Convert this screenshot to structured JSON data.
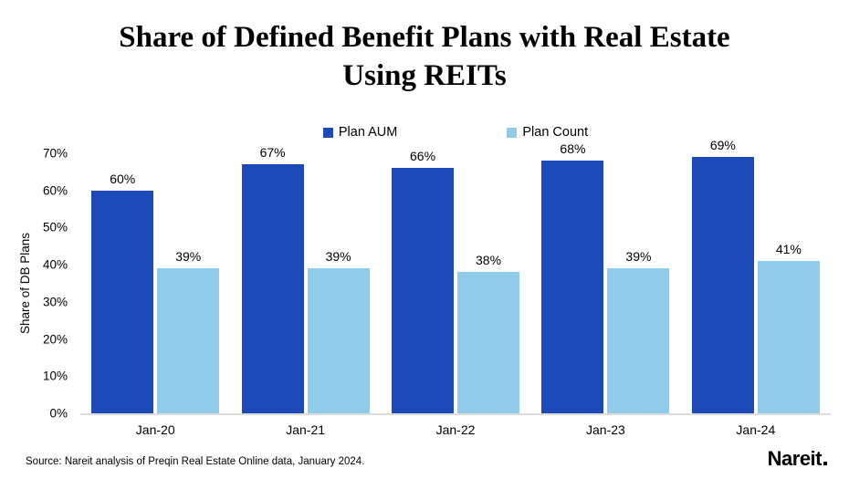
{
  "title_lines": [
    "Share of Defined Benefit Plans with Real Estate",
    "Using REITs"
  ],
  "source_note": "Source: Nareit analysis of Preqin Real Estate Online data, January 2024.",
  "logo_text": "Nareit",
  "colors": {
    "plan_aum": "#1E49B8",
    "plan_count": "#90CBEA",
    "baseline": "#dcdcdc",
    "text": "#000000"
  },
  "chart_data": {
    "type": "bar",
    "title": "Share of Defined Benefit Plans with Real Estate Using REITs",
    "categories": [
      "Jan-20",
      "Jan-21",
      "Jan-22",
      "Jan-23",
      "Jan-24"
    ],
    "series": [
      {
        "name": "Plan AUM",
        "color": "#1E49B8",
        "values": [
          60,
          67,
          66,
          68,
          69
        ],
        "labels": [
          "60%",
          "67%",
          "66%",
          "68%",
          "69%"
        ]
      },
      {
        "name": "Plan Count",
        "color": "#90CBEA",
        "values": [
          39,
          39,
          38,
          39,
          41
        ],
        "labels": [
          "39%",
          "39%",
          "38%",
          "39%",
          "41%"
        ]
      }
    ],
    "xlabel": "",
    "ylabel": "Share of DB Plans",
    "ylim": [
      0,
      70
    ],
    "ytick_values": [
      0,
      10,
      20,
      30,
      40,
      50,
      60,
      70
    ],
    "ytick_labels": [
      "0%",
      "10%",
      "20%",
      "30%",
      "40%",
      "50%",
      "60%",
      "70%"
    ],
    "legend_position": "top-center",
    "grid": false,
    "data_labels": true
  }
}
